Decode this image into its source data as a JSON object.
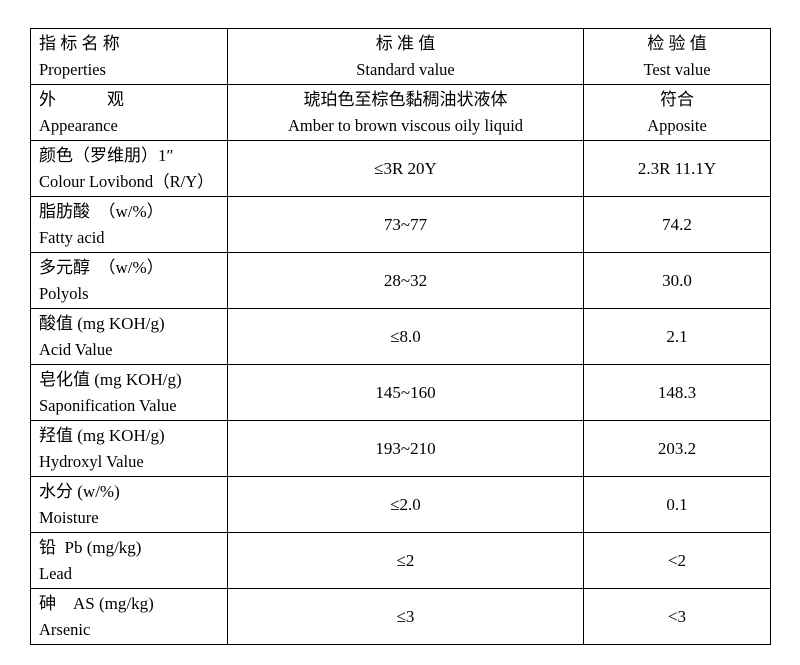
{
  "table": {
    "header": {
      "property": [
        "指 标 名 称",
        "Properties"
      ],
      "standard": [
        "标 准 值",
        "Standard value"
      ],
      "test": [
        "检 验 值",
        "Test value"
      ]
    },
    "rows": [
      {
        "property": [
          "外　　　观",
          "Appearance"
        ],
        "standard": [
          "琥珀色至棕色黏稠油状液体",
          "Amber to brown viscous oily liquid"
        ],
        "test": [
          "符合",
          "Apposite"
        ]
      },
      {
        "property": [
          "颜色（罗维朋）1″",
          "Colour Lovibond（R/Y）"
        ],
        "standard": [
          "≤3R 20Y"
        ],
        "test": [
          "2.3R 11.1Y"
        ]
      },
      {
        "property": [
          "脂肪酸　（w/%）",
          "Fatty acid"
        ],
        "standard": [
          "73~77"
        ],
        "test": [
          "74.2"
        ]
      },
      {
        "property": [
          "多元醇　（w/%）",
          "Polyols"
        ],
        "standard": [
          "28~32"
        ],
        "test": [
          "30.0"
        ]
      },
      {
        "property": [
          "酸值 (mg KOH/g)",
          "Acid Value"
        ],
        "standard": [
          "≤8.0"
        ],
        "test": [
          "2.1"
        ]
      },
      {
        "property": [
          "皂化值 (mg KOH/g)",
          "Saponification Value"
        ],
        "standard": [
          "145~160"
        ],
        "test": [
          "148.3"
        ]
      },
      {
        "property": [
          "羟值 (mg KOH/g)",
          "Hydroxyl Value"
        ],
        "standard": [
          "193~210"
        ],
        "test": [
          "203.2"
        ]
      },
      {
        "property": [
          "水分 (w/%)",
          "Moisture"
        ],
        "standard": [
          "≤2.0"
        ],
        "test": [
          "0.1"
        ]
      },
      {
        "property": [
          "铅  Pb (mg/kg)",
          "Lead"
        ],
        "standard": [
          "≤2"
        ],
        "test": [
          "<2"
        ]
      },
      {
        "property": [
          "砷　AS (mg/kg)",
          "Arsenic"
        ],
        "standard": [
          "≤3"
        ],
        "test": [
          "<3"
        ]
      }
    ]
  }
}
